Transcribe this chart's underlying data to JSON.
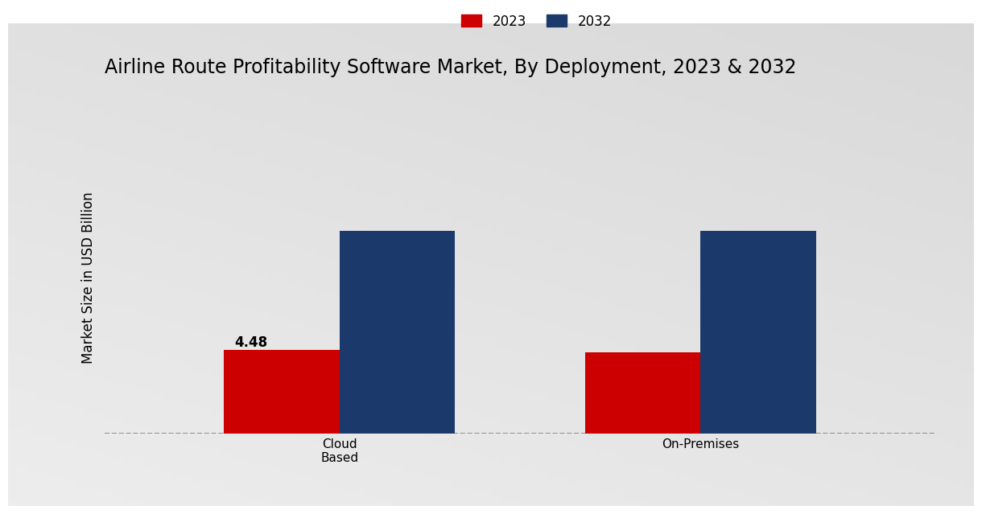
{
  "title": "Airline Route Profitability Software Market, By Deployment, 2023 & 2032",
  "ylabel": "Market Size in USD Billion",
  "categories": [
    "Cloud\nBased",
    "On-Premises"
  ],
  "values_2023": [
    4.48,
    4.35
  ],
  "values_2032": [
    10.8,
    10.8
  ],
  "color_2023": "#CC0000",
  "color_2032": "#1B3A6B",
  "legend_labels": [
    "2023",
    "2032"
  ],
  "bar_annotation": "4.48",
  "title_fontsize": 17,
  "label_fontsize": 12,
  "tick_fontsize": 11,
  "annotation_fontsize": 12,
  "bar_width": 0.32,
  "bg_light": "#DCDCDC",
  "bg_dark": "#C8C8C8",
  "bottom_bar_color": "#C0141A",
  "bottom_bar_height": 0.018
}
